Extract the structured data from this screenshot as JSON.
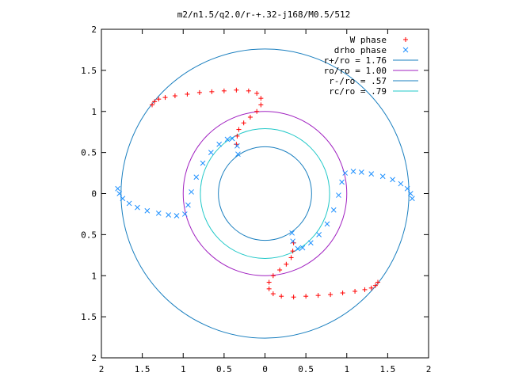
{
  "chart_data": {
    "type": "scatter",
    "title": "m2/n1.5/q2.0/r-+.32-j168/M0.5/512",
    "xlabel": "",
    "ylabel": "",
    "xlim": [
      -2,
      2
    ],
    "ylim": [
      -2,
      2
    ],
    "grid": false,
    "legend_position": "top-right",
    "x_ticks": [
      {
        "value": -2,
        "label": "2"
      },
      {
        "value": -1.5,
        "label": "1.5"
      },
      {
        "value": -1,
        "label": "1"
      },
      {
        "value": -0.5,
        "label": "0.5"
      },
      {
        "value": 0,
        "label": "0"
      },
      {
        "value": 0.5,
        "label": "0.5"
      },
      {
        "value": 1,
        "label": "1"
      },
      {
        "value": 1.5,
        "label": "1.5"
      },
      {
        "value": 2,
        "label": "2"
      }
    ],
    "y_ticks": [
      {
        "value": 2,
        "label": "2"
      },
      {
        "value": 1.5,
        "label": "1.5"
      },
      {
        "value": 1,
        "label": "1"
      },
      {
        "value": 0.5,
        "label": "0.5"
      },
      {
        "value": 0,
        "label": "0"
      },
      {
        "value": -0.5,
        "label": "0.5"
      },
      {
        "value": -1,
        "label": "1"
      },
      {
        "value": -1.5,
        "label": "1.5"
      },
      {
        "value": -2,
        "label": "2"
      }
    ],
    "series": [
      {
        "name": "W phase",
        "kind": "points",
        "marker": "plus",
        "color": "#ff0000",
        "points": [
          [
            -1.38,
            1.08
          ],
          [
            -1.35,
            1.12
          ],
          [
            -1.3,
            1.15
          ],
          [
            -1.22,
            1.17
          ],
          [
            -1.1,
            1.19
          ],
          [
            -0.95,
            1.21
          ],
          [
            -0.8,
            1.23
          ],
          [
            -0.65,
            1.24
          ],
          [
            -0.5,
            1.25
          ],
          [
            -0.35,
            1.26
          ],
          [
            -0.2,
            1.25
          ],
          [
            -0.1,
            1.22
          ],
          [
            -0.05,
            1.16
          ],
          [
            -0.05,
            1.08
          ],
          [
            -0.1,
            1.0
          ],
          [
            -0.18,
            0.93
          ],
          [
            -0.26,
            0.86
          ],
          [
            -0.32,
            0.78
          ],
          [
            -0.34,
            0.7
          ],
          [
            -0.35,
            0.6
          ],
          [
            1.38,
            -1.08
          ],
          [
            1.35,
            -1.12
          ],
          [
            1.3,
            -1.15
          ],
          [
            1.22,
            -1.17
          ],
          [
            1.1,
            -1.19
          ],
          [
            0.95,
            -1.21
          ],
          [
            0.8,
            -1.23
          ],
          [
            0.65,
            -1.24
          ],
          [
            0.5,
            -1.25
          ],
          [
            0.35,
            -1.26
          ],
          [
            0.2,
            -1.25
          ],
          [
            0.1,
            -1.22
          ],
          [
            0.05,
            -1.16
          ],
          [
            0.05,
            -1.08
          ],
          [
            0.1,
            -1.0
          ],
          [
            0.18,
            -0.93
          ],
          [
            0.26,
            -0.86
          ],
          [
            0.32,
            -0.78
          ],
          [
            0.34,
            -0.7
          ],
          [
            0.35,
            -0.6
          ]
        ]
      },
      {
        "name": "drho phase",
        "kind": "points",
        "marker": "cross",
        "color": "#1e90ff",
        "points": [
          [
            -1.8,
            0.06
          ],
          [
            -1.78,
            0.0
          ],
          [
            -1.74,
            -0.06
          ],
          [
            -1.66,
            -0.12
          ],
          [
            -1.56,
            -0.17
          ],
          [
            -1.44,
            -0.21
          ],
          [
            -1.3,
            -0.24
          ],
          [
            -1.18,
            -0.26
          ],
          [
            -1.08,
            -0.27
          ],
          [
            -0.98,
            -0.25
          ],
          [
            -0.94,
            -0.14
          ],
          [
            -0.9,
            0.02
          ],
          [
            -0.84,
            0.2
          ],
          [
            -0.76,
            0.37
          ],
          [
            -0.66,
            0.5
          ],
          [
            -0.56,
            0.6
          ],
          [
            -0.46,
            0.66
          ],
          [
            -0.4,
            0.67
          ],
          [
            -0.34,
            0.58
          ],
          [
            -0.33,
            0.48
          ],
          [
            1.8,
            -0.06
          ],
          [
            1.78,
            0.0
          ],
          [
            1.74,
            0.06
          ],
          [
            1.66,
            0.12
          ],
          [
            1.56,
            0.17
          ],
          [
            1.44,
            0.21
          ],
          [
            1.3,
            0.24
          ],
          [
            1.18,
            0.26
          ],
          [
            1.08,
            0.27
          ],
          [
            0.98,
            0.25
          ],
          [
            0.94,
            0.14
          ],
          [
            0.9,
            -0.02
          ],
          [
            0.84,
            -0.2
          ],
          [
            0.76,
            -0.37
          ],
          [
            0.66,
            -0.5
          ],
          [
            0.56,
            -0.6
          ],
          [
            0.46,
            -0.66
          ],
          [
            0.4,
            -0.67
          ],
          [
            0.34,
            -0.58
          ],
          [
            0.33,
            -0.48
          ]
        ]
      },
      {
        "name": "r+/ro = 1.76",
        "kind": "circle",
        "radius": 1.76,
        "color": "#1a7fbf"
      },
      {
        "name": "ro/ro = 1.00",
        "kind": "circle",
        "radius": 1.0,
        "color": "#a020c0"
      },
      {
        "name": "r-/ro = .57",
        "kind": "circle",
        "radius": 0.57,
        "color": "#1a7fbf"
      },
      {
        "name": "rc/ro = .79",
        "kind": "circle",
        "radius": 0.79,
        "color": "#20c8c8"
      }
    ]
  }
}
